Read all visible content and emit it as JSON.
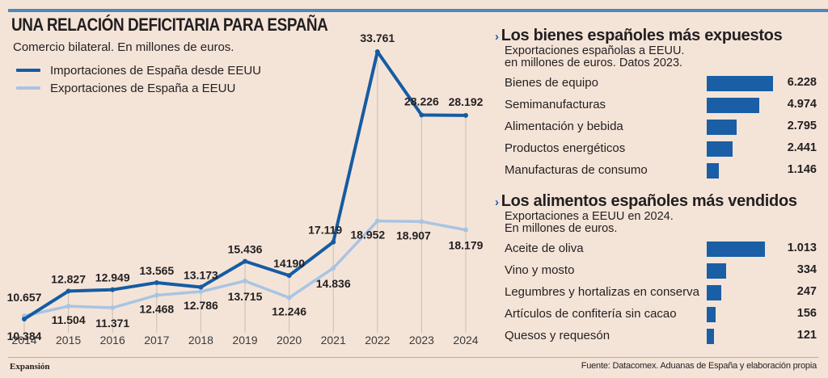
{
  "header": {
    "title": "UNA RELACIÓN DEFICITARIA PARA ESPAÑA",
    "subtitle": "Comercio bilateral. En millones de euros."
  },
  "legend": [
    {
      "label": "Importaciones de España desde EEUU",
      "color": "#155ca2"
    },
    {
      "label": "Exportaciones de España a EEUU",
      "color": "#a9c4e2"
    }
  ],
  "chart_data": [
    {
      "type": "line",
      "title": "UNA RELACIÓN DEFICITARIA PARA ESPAÑA",
      "subtitle": "Comercio bilateral. En millones de euros.",
      "xlabel": "",
      "ylabel": "",
      "grid": "vertical",
      "legend": "top-left",
      "x": [
        "2014",
        "2015",
        "2016",
        "2017",
        "2018",
        "2019",
        "2020",
        "2021",
        "2022",
        "2023",
        "2024"
      ],
      "ylim": [
        10384,
        33761
      ],
      "series": [
        {
          "name": "Importaciones de España desde EEUU",
          "color": "#155ca2",
          "values": [
            10384,
            12827,
            12949,
            13565,
            13173,
            15436,
            14190,
            17119,
            33761,
            28226,
            28192
          ],
          "labels": [
            "10.384",
            "12.827",
            "12.949",
            "13.565",
            "13.173",
            "15.436",
            "14190",
            "17.119",
            "33.761",
            "28.226",
            "28.192"
          ]
        },
        {
          "name": "Exportaciones de España a EEUU",
          "color": "#a9c4e2",
          "values": [
            10657,
            11504,
            11371,
            12468,
            12786,
            13715,
            12246,
            14836,
            18952,
            18907,
            18179
          ],
          "labels": [
            "10.657",
            "11.504",
            "11.371",
            "12.468",
            "12.786",
            "13.715",
            "12.246",
            "14.836",
            "18.952",
            "18.907",
            "18.179"
          ]
        }
      ]
    },
    {
      "type": "bar",
      "title": "Los bienes españoles más expuestos",
      "subtitle": [
        "Exportaciones españolas a EEUU.",
        "en millones de euros. Datos 2023."
      ],
      "categories": [
        "Bienes de equipo",
        "Semimanufacturas",
        "Alimentación y bebida",
        "Productos energéticos",
        "Manufacturas de consumo"
      ],
      "values": [
        6228,
        4974,
        2795,
        2441,
        1146
      ],
      "labels": [
        "6.228",
        "4.974",
        "2.795",
        "2.441",
        "1.146"
      ],
      "color": "#1a5ea5"
    },
    {
      "type": "bar",
      "title": "Los alimentos españoles más vendidos",
      "subtitle": [
        "Exportaciones a EEUU en 2024.",
        "En millones de euros."
      ],
      "categories": [
        "Aceite de oliva",
        "Vino y mosto",
        "Legumbres y hortalizas en conserva",
        "Artículos de confitería sin cacao",
        "Quesos y requesón"
      ],
      "values": [
        1013,
        334,
        247,
        156,
        121
      ],
      "labels": [
        "1.013",
        "334",
        "247",
        "156",
        "121"
      ],
      "color": "#1a5ea5"
    }
  ],
  "footer": {
    "brand": "Expansión",
    "source": "Fuente: Datacomex. Aduanas de España y elaboración propia"
  },
  "colors": {
    "background": "#f4e4d8",
    "top_rule": "#4f86c0",
    "accent": "#1a5ea5"
  }
}
